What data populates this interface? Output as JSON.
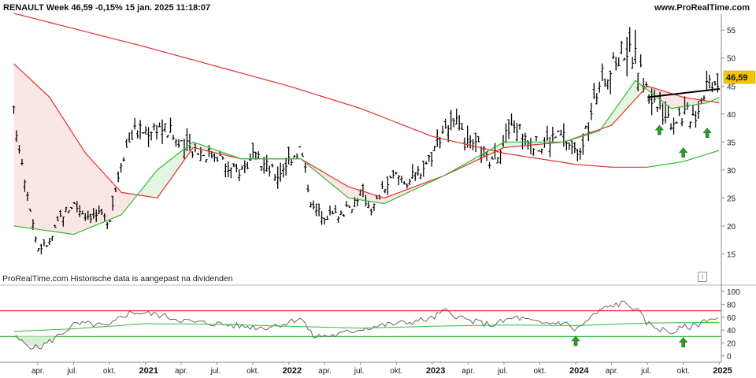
{
  "header": {
    "title": "RENAULT Week 46,59 -0,15% 15 jan. 2025 11:18:07",
    "website": "www.ProRealTime.com"
  },
  "footnote": "ProRealTime.com  Historische data is aangepast na dividenden",
  "info_icon": "info-icon",
  "price_badge": "46,59",
  "colors": {
    "price_bars": "#000000",
    "ma_red": "#e03030",
    "ma_green": "#33bb33",
    "fill_red": "#fbe6e6",
    "fill_green": "#e4f6e2",
    "trendline": "#000000",
    "arrow": "#2e9a2e",
    "badge": "#f5c400",
    "rsi_line": "#666666",
    "rsi_upper": "#e03030",
    "rsi_lower": "#33bb33"
  },
  "chart_data": [
    {
      "type": "ohlc",
      "x_range": [
        "2020-02",
        "2025-01"
      ],
      "y_ticks": [
        15,
        20,
        25,
        30,
        35,
        40,
        45,
        50,
        55
      ],
      "ylim": [
        10,
        57
      ],
      "last_price": 46.59,
      "close_series": [
        {
          "x": "2020-02",
          "y": 40
        },
        {
          "x": "2020-03",
          "y": 28
        },
        {
          "x": "2020-04",
          "y": 16
        },
        {
          "x": "2020-05",
          "y": 17
        },
        {
          "x": "2020-06",
          "y": 22
        },
        {
          "x": "2020-07",
          "y": 24
        },
        {
          "x": "2020-08",
          "y": 22
        },
        {
          "x": "2020-09",
          "y": 22
        },
        {
          "x": "2020-10",
          "y": 21
        },
        {
          "x": "2020-11",
          "y": 32
        },
        {
          "x": "2020-12",
          "y": 37
        },
        {
          "x": "2021-01",
          "y": 37
        },
        {
          "x": "2021-02",
          "y": 38
        },
        {
          "x": "2021-03",
          "y": 37
        },
        {
          "x": "2021-04",
          "y": 34
        },
        {
          "x": "2021-05",
          "y": 34
        },
        {
          "x": "2021-06",
          "y": 33
        },
        {
          "x": "2021-07",
          "y": 33
        },
        {
          "x": "2021-08",
          "y": 30
        },
        {
          "x": "2021-09",
          "y": 30
        },
        {
          "x": "2021-10",
          "y": 32
        },
        {
          "x": "2021-11",
          "y": 31
        },
        {
          "x": "2021-12",
          "y": 29
        },
        {
          "x": "2022-01",
          "y": 32
        },
        {
          "x": "2022-02",
          "y": 34
        },
        {
          "x": "2022-03",
          "y": 23
        },
        {
          "x": "2022-04",
          "y": 22
        },
        {
          "x": "2022-05",
          "y": 22
        },
        {
          "x": "2022-06",
          "y": 23
        },
        {
          "x": "2022-07",
          "y": 26
        },
        {
          "x": "2022-08",
          "y": 23
        },
        {
          "x": "2022-09",
          "y": 27
        },
        {
          "x": "2022-10",
          "y": 29
        },
        {
          "x": "2022-11",
          "y": 28
        },
        {
          "x": "2022-12",
          "y": 30
        },
        {
          "x": "2023-01",
          "y": 33
        },
        {
          "x": "2023-02",
          "y": 38
        },
        {
          "x": "2023-03",
          "y": 38
        },
        {
          "x": "2023-04",
          "y": 34
        },
        {
          "x": "2023-05",
          "y": 34
        },
        {
          "x": "2023-06",
          "y": 31
        },
        {
          "x": "2023-07",
          "y": 36
        },
        {
          "x": "2023-08",
          "y": 38
        },
        {
          "x": "2023-09",
          "y": 36
        },
        {
          "x": "2023-10",
          "y": 34
        },
        {
          "x": "2023-11",
          "y": 36
        },
        {
          "x": "2023-12",
          "y": 36
        },
        {
          "x": "2024-01",
          "y": 33
        },
        {
          "x": "2024-02",
          "y": 37
        },
        {
          "x": "2024-03",
          "y": 46
        },
        {
          "x": "2024-04",
          "y": 48
        },
        {
          "x": "2024-05",
          "y": 52
        },
        {
          "x": "2024-06",
          "y": 50
        },
        {
          "x": "2024-07",
          "y": 44
        },
        {
          "x": "2024-08",
          "y": 41
        },
        {
          "x": "2024-09",
          "y": 39
        },
        {
          "x": "2024-10",
          "y": 40
        },
        {
          "x": "2024-11",
          "y": 40
        },
        {
          "x": "2024-12",
          "y": 46
        },
        {
          "x": "2025-01",
          "y": 46.59
        }
      ],
      "ma_red_slow": [
        {
          "x": "2020-02",
          "y": 58
        },
        {
          "x": "2021-01",
          "y": 52
        },
        {
          "x": "2022-01",
          "y": 45
        },
        {
          "x": "2022-07",
          "y": 41
        },
        {
          "x": "2023-01",
          "y": 36
        },
        {
          "x": "2023-07",
          "y": 33
        },
        {
          "x": "2024-01",
          "y": 31
        },
        {
          "x": "2024-04",
          "y": 30.5
        },
        {
          "x": "2024-07",
          "y": 30.5
        }
      ],
      "ma_green_slow": [
        {
          "x": "2024-07",
          "y": 30.5
        },
        {
          "x": "2024-10",
          "y": 31.5
        },
        {
          "x": "2025-01",
          "y": 33.5
        }
      ],
      "ma_red_fast": [
        {
          "x": "2020-02",
          "y": 49
        },
        {
          "x": "2020-05",
          "y": 43
        },
        {
          "x": "2020-08",
          "y": 33
        },
        {
          "x": "2020-11",
          "y": 26
        },
        {
          "x": "2021-02",
          "y": 25
        },
        {
          "x": "2021-05",
          "y": 34
        },
        {
          "x": "2021-09",
          "y": 32
        },
        {
          "x": "2022-02",
          "y": 32
        },
        {
          "x": "2022-06",
          "y": 27
        },
        {
          "x": "2022-09",
          "y": 25
        },
        {
          "x": "2023-02",
          "y": 29
        },
        {
          "x": "2023-07",
          "y": 34
        },
        {
          "x": "2023-12",
          "y": 35
        },
        {
          "x": "2024-04",
          "y": 38
        },
        {
          "x": "2024-07",
          "y": 45
        },
        {
          "x": "2024-10",
          "y": 43
        },
        {
          "x": "2025-01",
          "y": 42
        }
      ],
      "ma_green_fast": [
        {
          "x": "2020-02",
          "y": 20
        },
        {
          "x": "2020-07",
          "y": 18.5
        },
        {
          "x": "2020-11",
          "y": 22
        },
        {
          "x": "2021-02",
          "y": 30
        },
        {
          "x": "2021-05",
          "y": 35
        },
        {
          "x": "2021-09",
          "y": 32
        },
        {
          "x": "2022-02",
          "y": 32
        },
        {
          "x": "2022-06",
          "y": 25
        },
        {
          "x": "2022-09",
          "y": 24
        },
        {
          "x": "2023-02",
          "y": 29
        },
        {
          "x": "2023-07",
          "y": 35
        },
        {
          "x": "2023-12",
          "y": 35
        },
        {
          "x": "2024-03",
          "y": 37
        },
        {
          "x": "2024-06",
          "y": 46
        },
        {
          "x": "2024-09",
          "y": 41
        },
        {
          "x": "2024-12",
          "y": 42
        },
        {
          "x": "2025-01",
          "y": 43
        }
      ],
      "trendline": [
        {
          "x": "2024-07",
          "y": 43
        },
        {
          "x": "2025-01",
          "y": 44.5
        }
      ],
      "arrows": [
        {
          "x": "2024-08",
          "y": 37
        },
        {
          "x": "2024-10",
          "y": 33
        },
        {
          "x": "2024-12",
          "y": 36.5
        }
      ]
    },
    {
      "type": "line",
      "y_ticks": [
        0,
        20,
        40,
        60,
        80,
        100
      ],
      "ylim": [
        -5,
        105
      ],
      "upper_level": 70,
      "lower_level": 30,
      "series_rsi": [
        {
          "x": "2020-02",
          "y": 30
        },
        {
          "x": "2020-03",
          "y": 18
        },
        {
          "x": "2020-04",
          "y": 12
        },
        {
          "x": "2020-05",
          "y": 22
        },
        {
          "x": "2020-06",
          "y": 35
        },
        {
          "x": "2020-07",
          "y": 48
        },
        {
          "x": "2020-08",
          "y": 50
        },
        {
          "x": "2020-09",
          "y": 48
        },
        {
          "x": "2020-10",
          "y": 45
        },
        {
          "x": "2020-11",
          "y": 62
        },
        {
          "x": "2020-12",
          "y": 68
        },
        {
          "x": "2021-01",
          "y": 66
        },
        {
          "x": "2021-02",
          "y": 64
        },
        {
          "x": "2021-03",
          "y": 60
        },
        {
          "x": "2021-05",
          "y": 52
        },
        {
          "x": "2021-07",
          "y": 50
        },
        {
          "x": "2021-09",
          "y": 46
        },
        {
          "x": "2021-11",
          "y": 44
        },
        {
          "x": "2022-01",
          "y": 52
        },
        {
          "x": "2022-02",
          "y": 60
        },
        {
          "x": "2022-03",
          "y": 30
        },
        {
          "x": "2022-05",
          "y": 32
        },
        {
          "x": "2022-07",
          "y": 42
        },
        {
          "x": "2022-09",
          "y": 48
        },
        {
          "x": "2022-11",
          "y": 52
        },
        {
          "x": "2023-01",
          "y": 58
        },
        {
          "x": "2023-02",
          "y": 70
        },
        {
          "x": "2023-04",
          "y": 55
        },
        {
          "x": "2023-06",
          "y": 48
        },
        {
          "x": "2023-08",
          "y": 60
        },
        {
          "x": "2023-10",
          "y": 50
        },
        {
          "x": "2023-12",
          "y": 52
        },
        {
          "x": "2024-01",
          "y": 40
        },
        {
          "x": "2024-02",
          "y": 55
        },
        {
          "x": "2024-03",
          "y": 70
        },
        {
          "x": "2024-04",
          "y": 78
        },
        {
          "x": "2024-05",
          "y": 82
        },
        {
          "x": "2024-06",
          "y": 74
        },
        {
          "x": "2024-07",
          "y": 50
        },
        {
          "x": "2024-08",
          "y": 42
        },
        {
          "x": "2024-09",
          "y": 36
        },
        {
          "x": "2024-10",
          "y": 44
        },
        {
          "x": "2024-11",
          "y": 46
        },
        {
          "x": "2024-12",
          "y": 58
        },
        {
          "x": "2025-01",
          "y": 57
        }
      ],
      "series_signal": [
        {
          "x": "2020-02",
          "y": 38
        },
        {
          "x": "2020-07",
          "y": 42
        },
        {
          "x": "2021-01",
          "y": 50
        },
        {
          "x": "2021-07",
          "y": 49
        },
        {
          "x": "2022-01",
          "y": 46
        },
        {
          "x": "2022-07",
          "y": 43
        },
        {
          "x": "2023-01",
          "y": 46
        },
        {
          "x": "2023-07",
          "y": 48
        },
        {
          "x": "2024-01",
          "y": 47
        },
        {
          "x": "2024-07",
          "y": 51
        },
        {
          "x": "2025-01",
          "y": 52
        }
      ],
      "arrows": [
        {
          "x": "2024-01",
          "y": 22
        },
        {
          "x": "2024-10",
          "y": 20
        }
      ]
    }
  ],
  "x_tick_labels": [
    {
      "text": "apr.",
      "date": "2020-04",
      "bold": false
    },
    {
      "text": "jul.",
      "date": "2020-07",
      "bold": false
    },
    {
      "text": "okt.",
      "date": "2020-10",
      "bold": false
    },
    {
      "text": "2021",
      "date": "2021-01",
      "bold": true
    },
    {
      "text": "apr.",
      "date": "2021-04",
      "bold": false
    },
    {
      "text": "jul.",
      "date": "2021-07",
      "bold": false
    },
    {
      "text": "okt.",
      "date": "2021-10",
      "bold": false
    },
    {
      "text": "2022",
      "date": "2022-01",
      "bold": true
    },
    {
      "text": "apr.",
      "date": "2022-04",
      "bold": false
    },
    {
      "text": "jul.",
      "date": "2022-07",
      "bold": false
    },
    {
      "text": "okt.",
      "date": "2022-10",
      "bold": false
    },
    {
      "text": "2023",
      "date": "2023-01",
      "bold": true
    },
    {
      "text": "apr.",
      "date": "2023-04",
      "bold": false
    },
    {
      "text": "jul.",
      "date": "2023-07",
      "bold": false
    },
    {
      "text": "okt.",
      "date": "2023-10",
      "bold": false
    },
    {
      "text": "2024",
      "date": "2024-01",
      "bold": true
    },
    {
      "text": "apr.",
      "date": "2024-04",
      "bold": false
    },
    {
      "text": "jul.",
      "date": "2024-07",
      "bold": false
    },
    {
      "text": "okt.",
      "date": "2024-10",
      "bold": false
    },
    {
      "text": "2025",
      "date": "2025-01",
      "bold": true
    }
  ]
}
